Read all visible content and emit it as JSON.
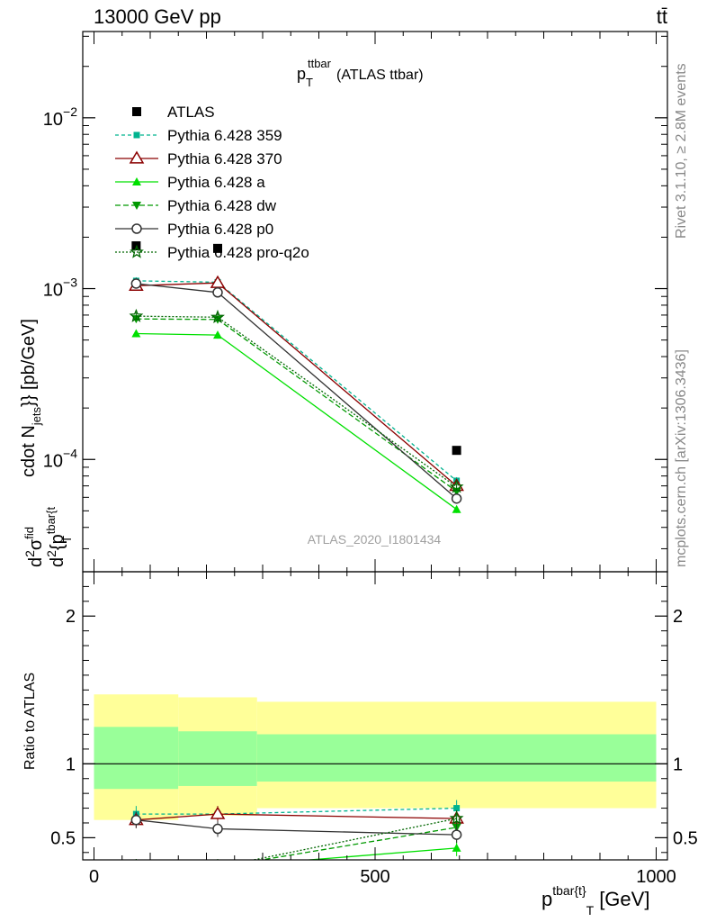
{
  "header": {
    "left": "13000 GeV pp",
    "right": "tt̄"
  },
  "side_labels": {
    "rivet": "Rivet 3.1.10, ≥ 2.8M events",
    "mcplots": "mcplots.cern.ch [arXiv:1306.3436]"
  },
  "watermark": "ATLAS_2020_I1801434",
  "chart_data": {
    "type": "line",
    "title": "p_T^ttbar (ATLAS ttbar)",
    "title_main": "p",
    "title_sup": "ttbar",
    "title_sub": "T",
    "title_rest": "(ATLAS ttbar)",
    "xlabel": "p^{tbar{t}}_T [GeV]",
    "xlabel_main": "p",
    "xlabel_sup": "tbar{t}",
    "xlabel_sub": "T",
    "xlabel_rest": "[GeV]",
    "ylabel": "d^2σ^fid / d^2{p_T^tbar{t}} cdot N_jets}} [pb/GeV]",
    "ylabel_parts": [
      "d",
      "2",
      "σ",
      "fid",
      "d",
      "2",
      "{p",
      "tbar{t",
      "T",
      "cdot N",
      "jets",
      "}} [pb/GeV]"
    ],
    "ratio_ylabel": "Ratio to ATLAS",
    "x_ticks": [
      "0",
      "500",
      "1000"
    ],
    "x_tick_values": [
      0,
      500,
      1000
    ],
    "xlim": [
      -20,
      1020
    ],
    "ylim": [
      2.2e-05,
      0.032
    ],
    "yscale": "log",
    "y_ticks": [
      {
        "value": 0.01,
        "base": "10",
        "exp": "−2"
      },
      {
        "value": 0.001,
        "base": "10",
        "exp": "−3"
      },
      {
        "value": 0.0001,
        "base": "10",
        "exp": "−4"
      }
    ],
    "ratio_ylim": [
      0.35,
      2.3
    ],
    "ratio_ticks": [
      "0.5",
      "1",
      "2"
    ],
    "ratio_tick_values": [
      0.5,
      1,
      2
    ],
    "x": [
      75,
      220,
      645
    ],
    "bin_edges": [
      0,
      150,
      290,
      1000
    ],
    "atlas": {
      "name": "ATLAS",
      "values": [
        0.00178,
        0.00172,
        0.000113
      ],
      "band_green": [
        [
          0.83,
          1.25
        ],
        [
          0.85,
          1.22
        ],
        [
          0.88,
          1.2
        ]
      ],
      "band_yellow": [
        [
          0.62,
          1.47
        ],
        [
          0.65,
          1.45
        ],
        [
          0.7,
          1.42
        ]
      ]
    },
    "series": [
      {
        "name": "Pythia 6.428 359",
        "color": "#00b38f",
        "dash": "4,3",
        "marker": "square-small",
        "values": [
          0.00111,
          0.00109,
          7.5e-05
        ],
        "ratio": [
          0.66,
          0.66,
          0.7
        ]
      },
      {
        "name": "Pythia 6.428 370",
        "color": "#8b0000",
        "dash": "",
        "marker": "triangle-open",
        "values": [
          0.00104,
          0.00108,
          7e-05
        ],
        "ratio": [
          0.62,
          0.66,
          0.63
        ]
      },
      {
        "name": "Pythia 6.428 a",
        "color": "#00e000",
        "dash": "",
        "marker": "triangle",
        "values": [
          0.000545,
          0.000535,
          5.1e-05
        ],
        "ratio": [
          0.3,
          0.3,
          0.43
        ]
      },
      {
        "name": "Pythia 6.428 dw",
        "color": "#009900",
        "dash": "6,3",
        "marker": "triangle-down",
        "values": [
          0.000665,
          0.00066,
          6.5e-05
        ],
        "ratio": [
          0.3,
          0.3,
          0.57
        ]
      },
      {
        "name": "Pythia 6.428 p0",
        "color": "#333333",
        "dash": "",
        "marker": "circle-open",
        "values": [
          0.00107,
          0.00095,
          5.9e-05
        ],
        "ratio": [
          0.62,
          0.56,
          0.52
        ]
      },
      {
        "name": "Pythia 6.428 pro-q2o",
        "color": "#006600",
        "dash": "2,2",
        "marker": "star-open",
        "values": [
          0.00069,
          0.00068,
          6.9e-05
        ],
        "ratio": [
          0.3,
          0.3,
          0.63
        ]
      }
    ]
  }
}
